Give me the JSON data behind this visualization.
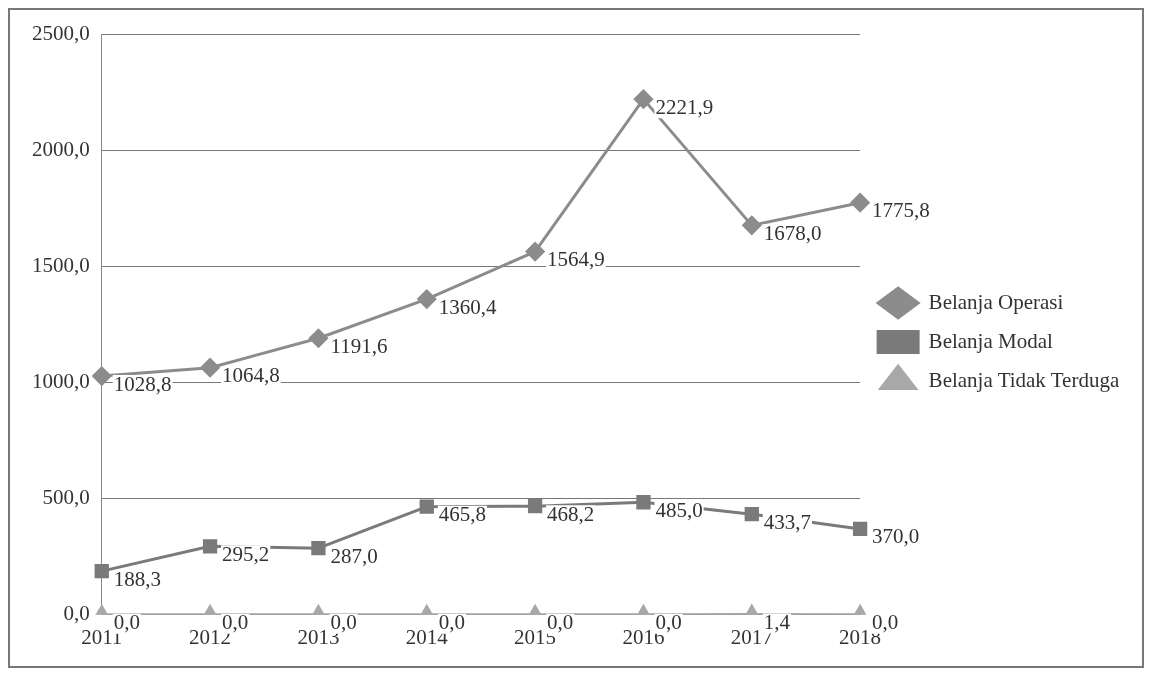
{
  "chart_data": {
    "type": "line",
    "categories": [
      "2011",
      "2012",
      "2013",
      "2014",
      "2015",
      "2016",
      "2017",
      "2018"
    ],
    "series": [
      {
        "name": "Belanja Operasi",
        "color": "#8c8c8c",
        "marker": "diamond",
        "values": [
          1028.8,
          1064.8,
          1191.6,
          1360.4,
          1564.9,
          2221.9,
          1678.0,
          1775.8
        ],
        "value_labels": [
          "1028,8",
          "1064,8",
          "1191,6",
          "1360,4",
          "1564,9",
          "2221,9",
          "1678,0",
          "1775,8"
        ]
      },
      {
        "name": "Belanja Modal",
        "color": "#7a7a7a",
        "marker": "square",
        "values": [
          188.3,
          295.2,
          287.0,
          465.8,
          468.2,
          485.0,
          433.7,
          370.0
        ],
        "value_labels": [
          "188,3",
          "295,2",
          "287,0",
          "465,8",
          "468,2",
          "485,0",
          "433,7",
          "370,0"
        ]
      },
      {
        "name": "Belanja Tidak Terduga",
        "color": "#a8a8a8",
        "marker": "triangle",
        "values": [
          0.0,
          0.0,
          0.0,
          0.0,
          0.0,
          0.0,
          1.4,
          0.0
        ],
        "value_labels": [
          "0,0",
          "0,0",
          "0,0",
          "0,0",
          "0,0",
          "0,0",
          "1,4",
          "0,0"
        ]
      }
    ],
    "ylim": [
      0,
      2500
    ],
    "yticks": [
      {
        "value": 0,
        "label": "0,0"
      },
      {
        "value": 500,
        "label": "500,0"
      },
      {
        "value": 1000,
        "label": "1000,0"
      },
      {
        "value": 1500,
        "label": "1500,0"
      },
      {
        "value": 2000,
        "label": "2000,0"
      },
      {
        "value": 2500,
        "label": "2500,0"
      }
    ],
    "grid": "y",
    "legend": "right",
    "line_style": "solid"
  }
}
